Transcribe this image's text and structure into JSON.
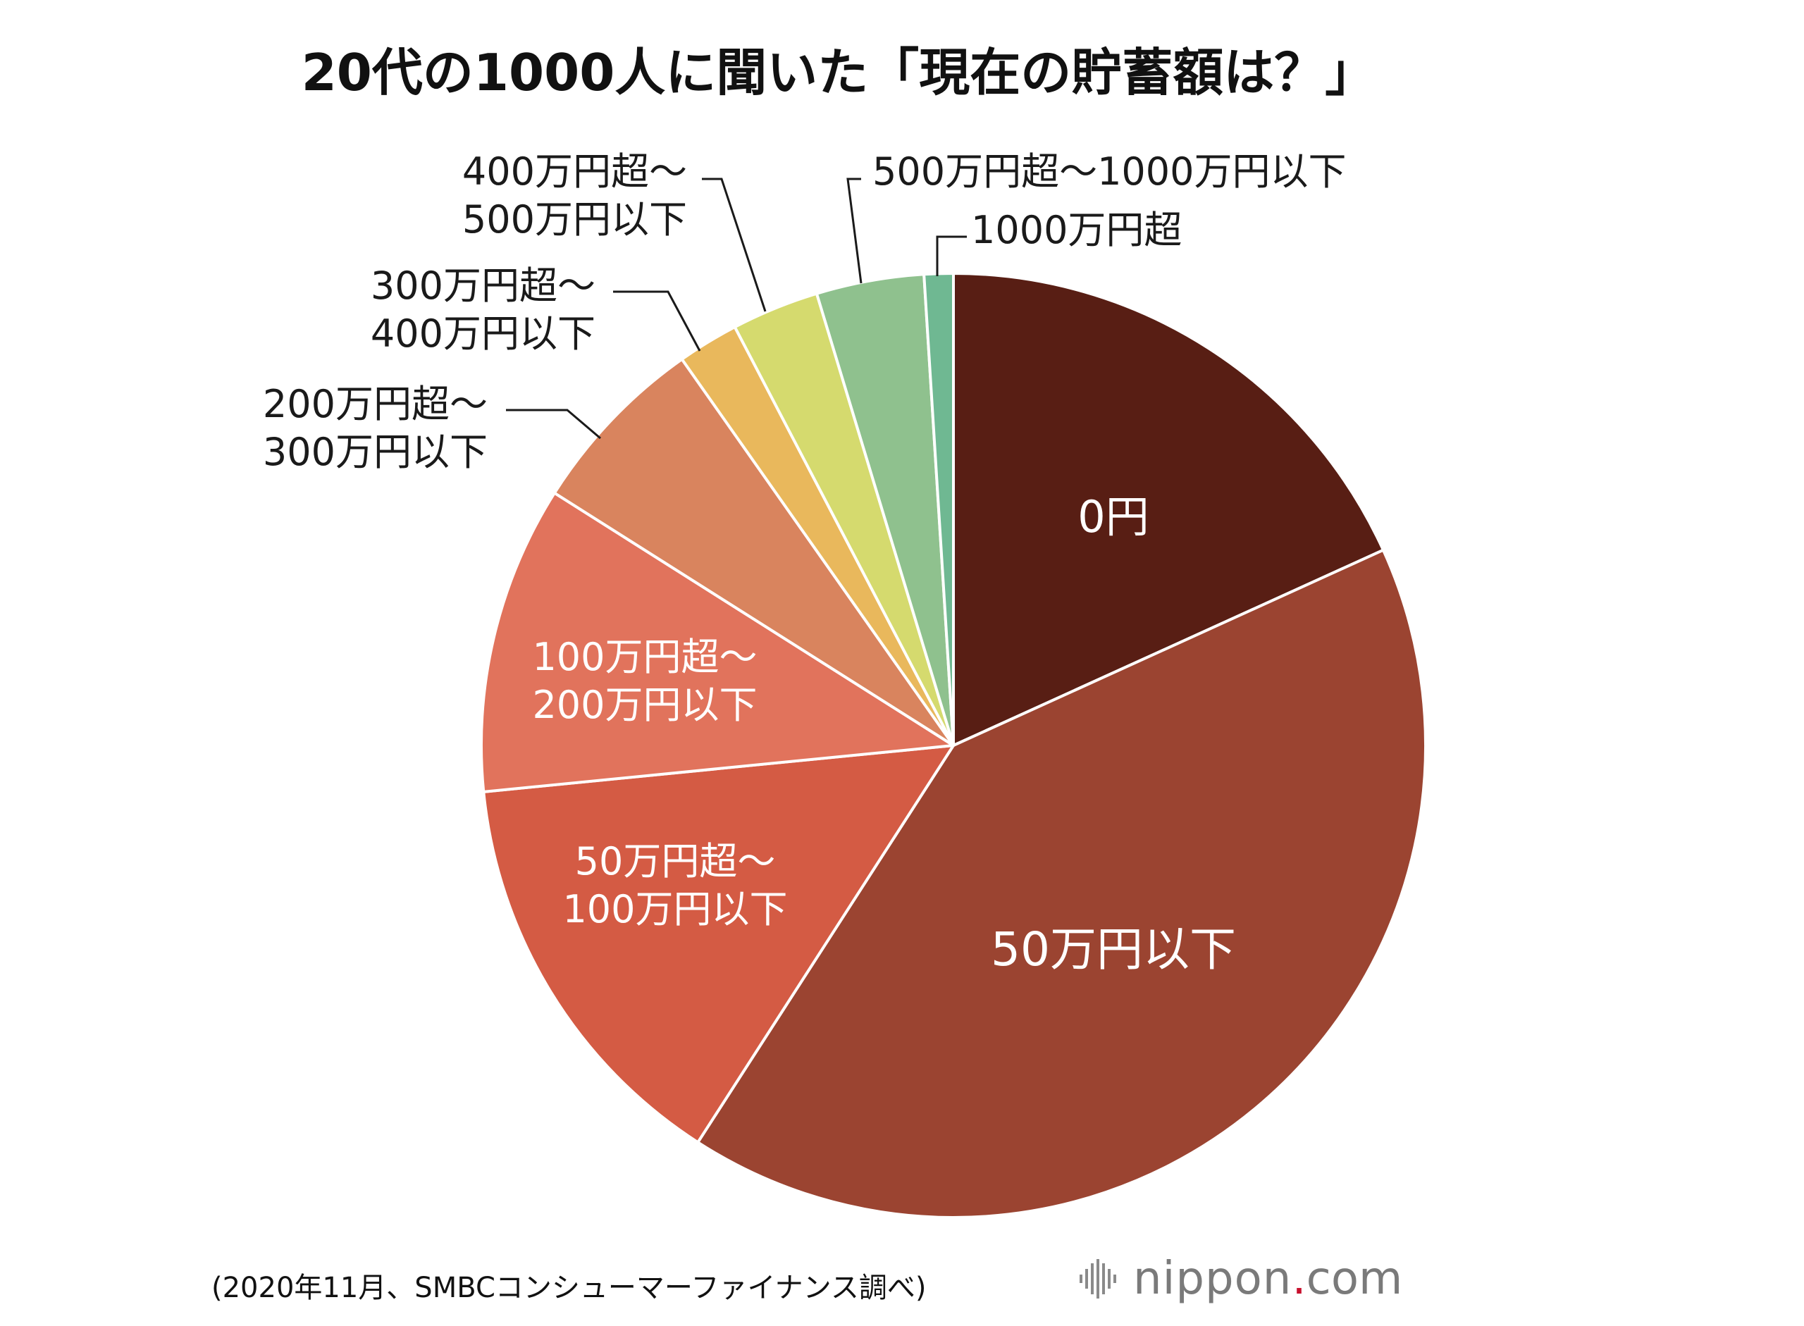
{
  "chart_data": {
    "type": "pie",
    "title": "20代の1000人に聞いた「現在の貯蓄額は？」",
    "slices": [
      {
        "label": "0円",
        "label_lines": [
          "0円"
        ],
        "value": 18.3,
        "color": "#581e14"
      },
      {
        "label": "50万円以下",
        "label_lines": [
          "50万円以下"
        ],
        "value": 41.1,
        "color": "#9b4431"
      },
      {
        "label": "50万円超〜100万円以下",
        "label_lines": [
          "50万円超〜",
          "100万円以下"
        ],
        "value": 14.4,
        "color": "#d45b44"
      },
      {
        "label": "100万円超〜200万円以下",
        "label_lines": [
          "100万円超〜",
          "200万円以下"
        ],
        "value": 10.6,
        "color": "#e1735c"
      },
      {
        "label": "200万円超〜300万円以下",
        "label_lines": [
          "200万円超〜",
          "300万円以下"
        ],
        "value": 6.3,
        "color": "#d9845e"
      },
      {
        "label": "300万円超〜400万円以下",
        "label_lines": [
          "300万円超〜",
          "400万円以下"
        ],
        "value": 2.1,
        "color": "#e9b85c"
      },
      {
        "label": "400万円超〜500万円以下",
        "label_lines": [
          "400万円超〜",
          "500万円以下"
        ],
        "value": 3.0,
        "color": "#d5da6e"
      },
      {
        "label": "500万円超〜1000万円以下",
        "label_lines": [
          "500万円超〜1000万円以下"
        ],
        "value": 3.7,
        "color": "#8fc18e"
      },
      {
        "label": "1000万円超",
        "label_lines": [
          "1000万円超"
        ],
        "value": 1.0,
        "color": "#6fb892"
      }
    ],
    "start_angle_deg": 0,
    "direction": "clockwise"
  },
  "footer": {
    "source": "(2020年11月、SMBCコンシューマーファイナンス調べ)",
    "brand_name": "nippon",
    "brand_dot": ".",
    "brand_tld": "com"
  }
}
